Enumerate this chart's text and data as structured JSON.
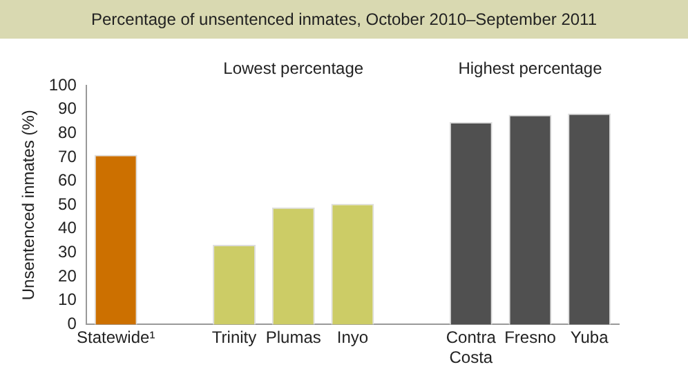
{
  "chart_data": {
    "type": "bar",
    "title": "Percentage of unsentenced inmates, October 2010–September 2011",
    "ylabel": "Unsentenced inmates (%)",
    "categories": [
      "Statewide¹",
      null,
      "Trinity",
      "Plumas",
      "Inyo",
      null,
      "Contra Costa",
      "Fresno",
      "Yuba"
    ],
    "values": [
      71,
      null,
      33.3,
      49,
      50.5,
      null,
      84.7,
      87.7,
      88.3
    ],
    "colors": [
      "#cc7000",
      "#ffffff",
      "#cccc66",
      "#cccc66",
      "#cccc66",
      "#ffffff",
      "#505050",
      "#505050",
      "#505050"
    ],
    "ylim": [
      0,
      100
    ],
    "yticks": [
      0,
      10,
      20,
      30,
      40,
      50,
      60,
      70,
      80,
      90,
      100
    ],
    "grid": false,
    "legend": false,
    "annotations": [
      "Lowest percentage",
      "Highest percentage"
    ]
  }
}
